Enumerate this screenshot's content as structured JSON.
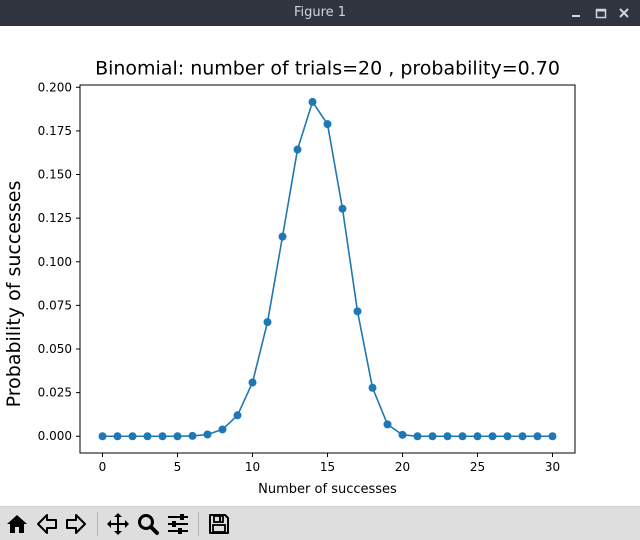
{
  "window": {
    "title": "Figure 1"
  },
  "toolbar": {
    "buttons": [
      {
        "name": "home",
        "icon": "home-icon"
      },
      {
        "name": "back",
        "icon": "arrow-left-icon"
      },
      {
        "name": "forward",
        "icon": "arrow-right-icon"
      },
      {
        "name": "pan",
        "icon": "move-icon"
      },
      {
        "name": "zoom",
        "icon": "magnifier-icon"
      },
      {
        "name": "configure-subplots",
        "icon": "sliders-icon"
      },
      {
        "name": "save",
        "icon": "floppy-disk-icon"
      }
    ]
  },
  "chart_data": {
    "type": "line",
    "title": "Binomial: number of trials=20 , probability=0.70",
    "xlabel": "Number of successes",
    "ylabel": "Probability of successes",
    "xlim": [
      -1.5,
      31.5
    ],
    "ylim": [
      -0.0096,
      0.2013
    ],
    "xticks": [
      0,
      5,
      10,
      15,
      20,
      25,
      30
    ],
    "xtick_labels": [
      "0",
      "5",
      "10",
      "15",
      "20",
      "25",
      "30"
    ],
    "yticks": [
      0,
      0.025,
      0.05,
      0.075,
      0.1,
      0.125,
      0.15,
      0.175,
      0.2
    ],
    "ytick_labels": [
      "0.000",
      "0.025",
      "0.050",
      "0.075",
      "0.100",
      "0.125",
      "0.150",
      "0.175",
      "0.200"
    ],
    "grid": false,
    "color": "#1f77b4",
    "series": [
      {
        "x": [
          0,
          1,
          2,
          3,
          4,
          5,
          6,
          7,
          8,
          9,
          10,
          11,
          12,
          13,
          14,
          15,
          16,
          17,
          18,
          19,
          20,
          21,
          22,
          23,
          24,
          25,
          26,
          27,
          28,
          29,
          30
        ],
        "y": [
          0.0,
          0.0,
          0.0,
          0.0,
          0.0,
          0.0,
          0.0002,
          0.001,
          0.0039,
          0.012,
          0.0308,
          0.0654,
          0.1144,
          0.1643,
          0.1916,
          0.1789,
          0.1304,
          0.0716,
          0.0278,
          0.0068,
          0.0008,
          0,
          0,
          0,
          0,
          0,
          0,
          0,
          0,
          0,
          0
        ],
        "marker": "circle"
      }
    ]
  }
}
